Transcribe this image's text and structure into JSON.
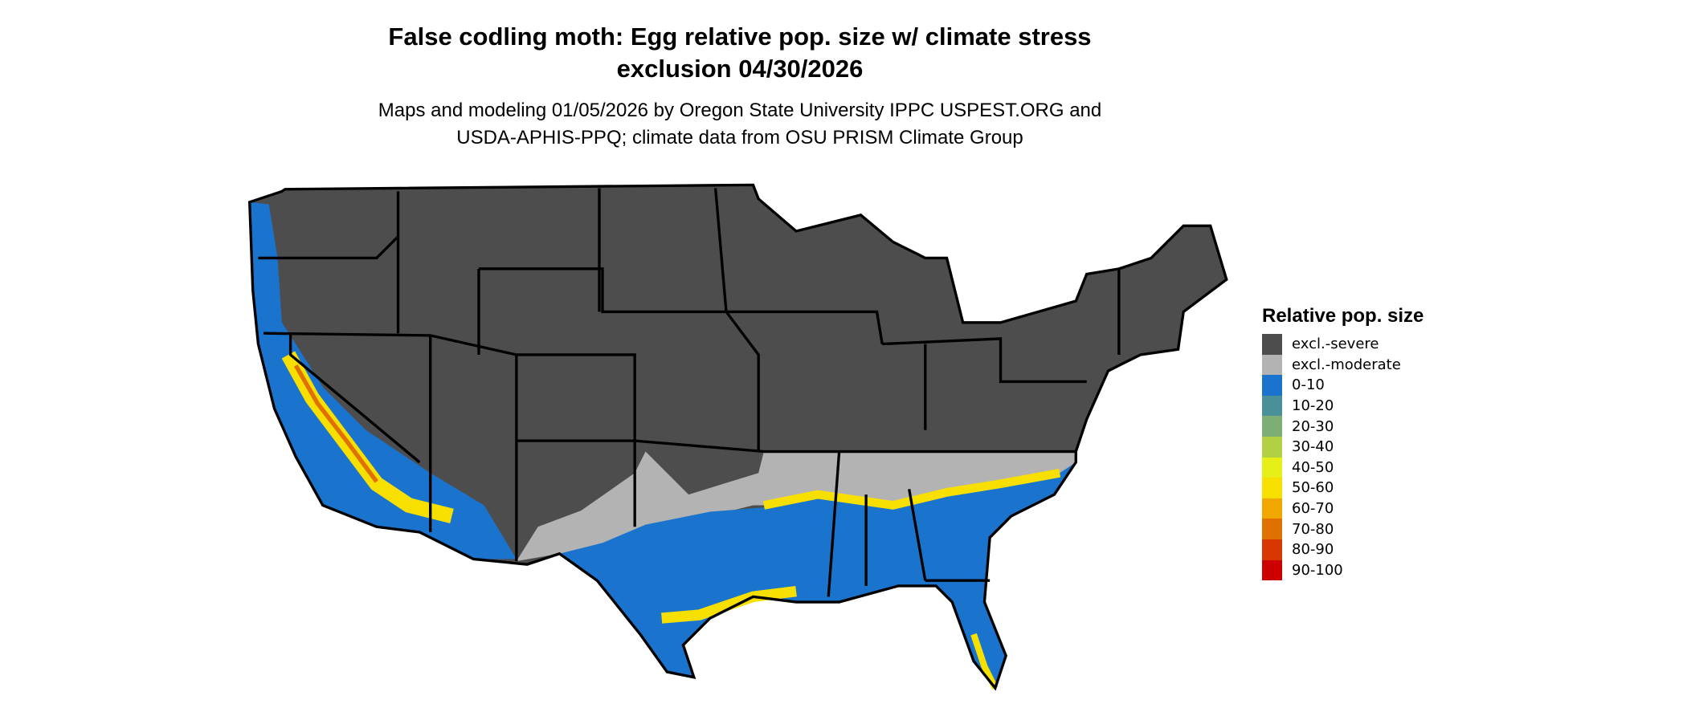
{
  "title": {
    "line1": "False codling moth: Egg relative pop. size w/ climate stress",
    "line2": "exclusion 04/30/2026"
  },
  "subtitle": {
    "line1": "Maps and modeling 01/05/2026 by Oregon State University IPPC USPEST.ORG and",
    "line2": "USDA-APHIS-PPQ; climate data from OSU PRISM Climate Group"
  },
  "legend": {
    "title": "Relative pop. size",
    "items": [
      {
        "label": "excl.-severe",
        "color": "#4d4d4d"
      },
      {
        "label": "excl.-moderate",
        "color": "#b3b3b3"
      },
      {
        "label": "0-10",
        "color": "#1a73cc"
      },
      {
        "label": "10-20",
        "color": "#4a9098"
      },
      {
        "label": "20-30",
        "color": "#7daf74"
      },
      {
        "label": "30-40",
        "color": "#b2d044"
      },
      {
        "label": "40-50",
        "color": "#e6f016"
      },
      {
        "label": "50-60",
        "color": "#f7e000"
      },
      {
        "label": "60-70",
        "color": "#f0a800"
      },
      {
        "label": "70-80",
        "color": "#e07000"
      },
      {
        "label": "80-90",
        "color": "#d83800"
      },
      {
        "label": "90-100",
        "color": "#cc0000"
      }
    ]
  }
}
